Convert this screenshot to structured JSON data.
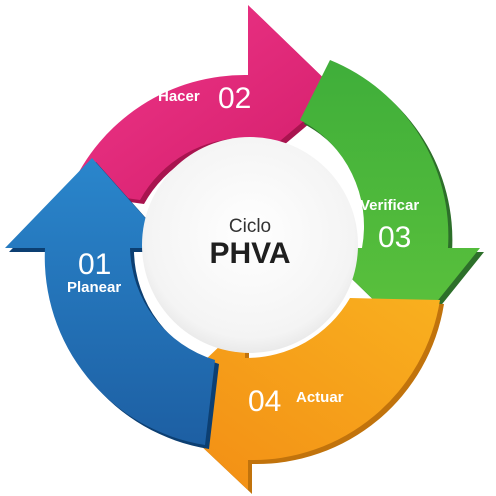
{
  "center": {
    "line1": "Ciclo",
    "line2": "PHVA"
  },
  "steps": [
    {
      "number": "02",
      "label": "Hacer",
      "color": "#e8287a",
      "color_dark": "#b81a5c"
    },
    {
      "number": "03",
      "label": "Verificar",
      "color": "#49b43a",
      "color_dark": "#2a7d2a"
    },
    {
      "number": "04",
      "label": "Actuar",
      "color": "#f6a21e",
      "color_dark": "#c97b0d"
    },
    {
      "number": "01",
      "label": "Planear",
      "color": "#1f72b8",
      "color_dark": "#0f4a82"
    }
  ]
}
